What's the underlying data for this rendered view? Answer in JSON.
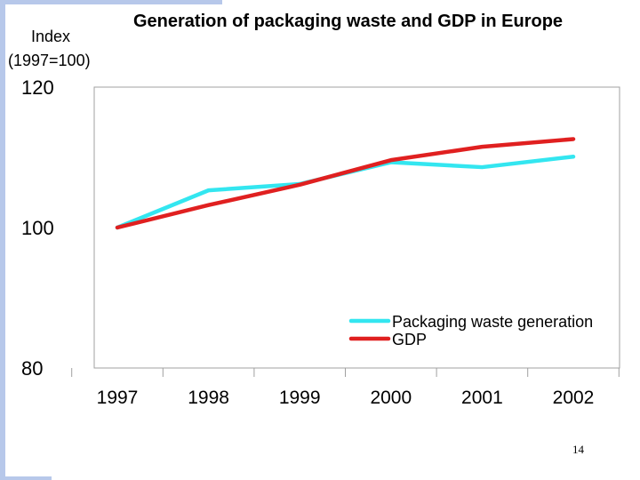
{
  "chart_data": {
    "type": "line",
    "title": "Generation of packaging waste and GDP in Europe",
    "ylabel_line1": "Index",
    "ylabel_line2": "(1997=100)",
    "xlabel": "",
    "categories": [
      "1997",
      "1998",
      "1999",
      "2000",
      "2001",
      "2002"
    ],
    "ylim": [
      80,
      120
    ],
    "yticks": [
      "80",
      "100",
      "120"
    ],
    "grid": false,
    "legend_position": "bottom-right",
    "series": [
      {
        "name": "Packaging waste generation",
        "color": "#33e6f0",
        "values": [
          100,
          105.3,
          106.2,
          109.3,
          108.6,
          110.1
        ]
      },
      {
        "name": "GDP",
        "color": "#e02020",
        "values": [
          100,
          103.2,
          106.1,
          109.6,
          111.5,
          112.6
        ]
      }
    ]
  },
  "page_number": "14"
}
